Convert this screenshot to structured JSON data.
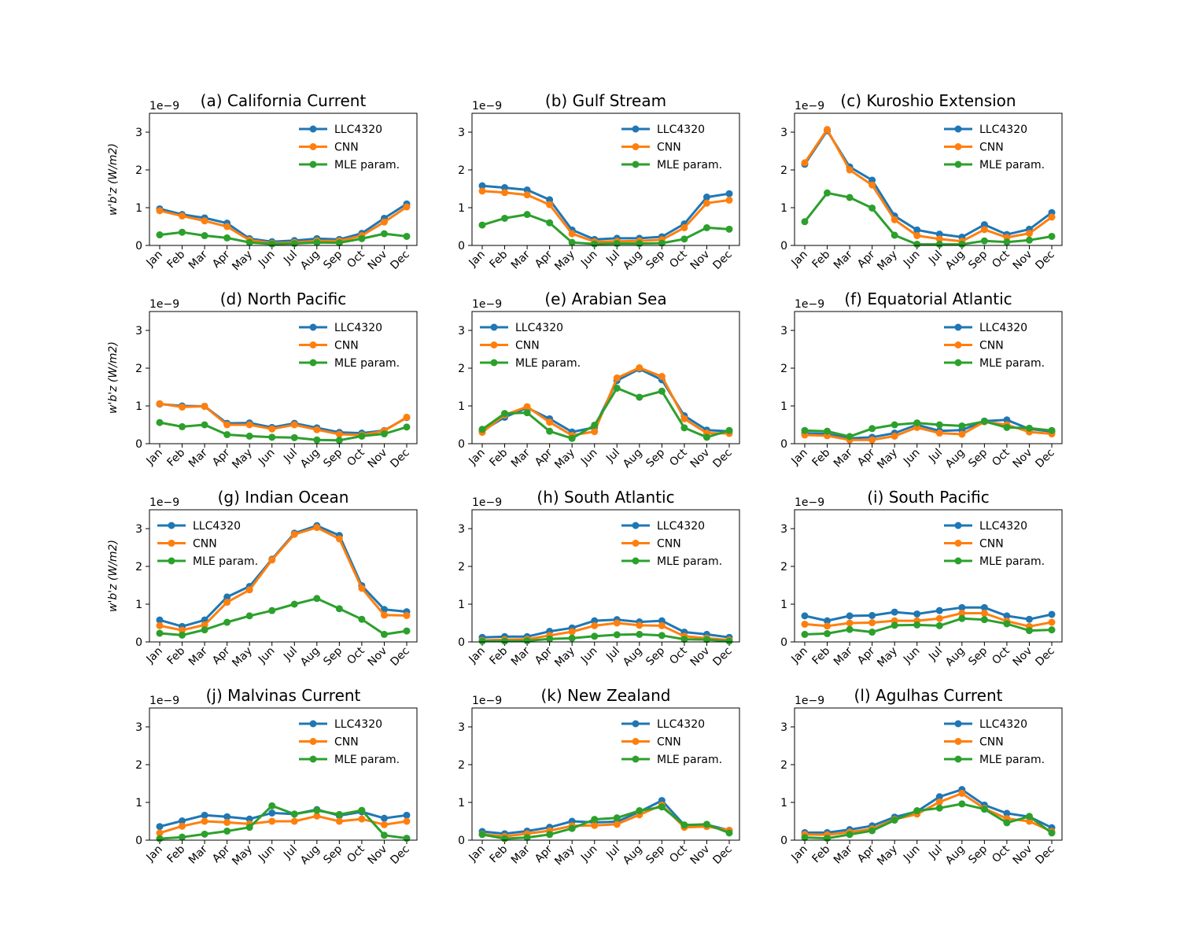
{
  "chart_data": {
    "type": "line",
    "months": [
      "Jan",
      "Feb",
      "Mar",
      "Apr",
      "May",
      "Jun",
      "Jul",
      "Aug",
      "Sep",
      "Oct",
      "Nov",
      "Dec"
    ],
    "ylim": [
      0,
      3.5
    ],
    "yticks": [
      "0",
      "1",
      "2",
      "3"
    ],
    "y_exponent_label": "1e−9",
    "ylabel": "w'b'z (W/m2)",
    "series_names": [
      "LLC4320",
      "CNN",
      "MLE param."
    ],
    "colors": {
      "llc": "#1f77b4",
      "cnn": "#ff7f0e",
      "mle": "#2ca02c"
    },
    "panels": [
      {
        "title": "(a) California Current",
        "legend_pos": "top-right",
        "show_ylabel": true,
        "series": [
          {
            "name": "LLC4320",
            "values": [
              0.97,
              0.82,
              0.73,
              0.59,
              0.18,
              0.1,
              0.13,
              0.18,
              0.16,
              0.32,
              0.72,
              1.1
            ]
          },
          {
            "name": "CNN",
            "values": [
              0.92,
              0.78,
              0.65,
              0.5,
              0.14,
              0.06,
              0.08,
              0.12,
              0.12,
              0.26,
              0.62,
              1.02
            ]
          },
          {
            "name": "MLE param.",
            "values": [
              0.28,
              0.35,
              0.26,
              0.2,
              0.08,
              0.04,
              0.05,
              0.08,
              0.07,
              0.18,
              0.31,
              0.24
            ]
          }
        ]
      },
      {
        "title": "(b) Gulf Stream",
        "legend_pos": "top-right",
        "show_ylabel": false,
        "series": [
          {
            "name": "LLC4320",
            "values": [
              1.58,
              1.53,
              1.47,
              1.21,
              0.41,
              0.16,
              0.19,
              0.19,
              0.23,
              0.57,
              1.28,
              1.37
            ]
          },
          {
            "name": "CNN",
            "values": [
              1.44,
              1.4,
              1.34,
              1.08,
              0.31,
              0.1,
              0.11,
              0.12,
              0.15,
              0.47,
              1.12,
              1.2
            ]
          },
          {
            "name": "MLE param.",
            "values": [
              0.54,
              0.72,
              0.82,
              0.6,
              0.08,
              0.04,
              0.05,
              0.05,
              0.06,
              0.17,
              0.47,
              0.43
            ]
          }
        ]
      },
      {
        "title": "(c) Kuroshio Extension",
        "legend_pos": "top-right",
        "show_ylabel": false,
        "series": [
          {
            "name": "LLC4320",
            "values": [
              2.15,
              3.04,
              2.08,
              1.73,
              0.78,
              0.41,
              0.3,
              0.22,
              0.55,
              0.29,
              0.43,
              0.87
            ]
          },
          {
            "name": "CNN",
            "values": [
              2.19,
              3.07,
              2.0,
              1.6,
              0.68,
              0.26,
              0.17,
              0.11,
              0.42,
              0.21,
              0.32,
              0.75
            ]
          },
          {
            "name": "MLE param.",
            "values": [
              0.63,
              1.39,
              1.27,
              0.99,
              0.27,
              0.03,
              0.03,
              0.03,
              0.12,
              0.09,
              0.14,
              0.24
            ]
          }
        ]
      },
      {
        "title": "(d) North Pacific",
        "legend_pos": "top-right",
        "show_ylabel": true,
        "series": [
          {
            "name": "LLC4320",
            "values": [
              1.05,
              1.0,
              0.99,
              0.54,
              0.55,
              0.43,
              0.54,
              0.42,
              0.3,
              0.28,
              0.35,
              0.69
            ]
          },
          {
            "name": "CNN",
            "values": [
              1.06,
              0.97,
              0.99,
              0.5,
              0.5,
              0.39,
              0.5,
              0.37,
              0.25,
              0.23,
              0.34,
              0.7
            ]
          },
          {
            "name": "MLE param.",
            "values": [
              0.56,
              0.45,
              0.5,
              0.24,
              0.2,
              0.17,
              0.16,
              0.1,
              0.09,
              0.2,
              0.26,
              0.44
            ]
          }
        ]
      },
      {
        "title": "(e) Arabian Sea",
        "legend_pos": "top-left",
        "show_ylabel": false,
        "series": [
          {
            "name": "LLC4320",
            "values": [
              0.34,
              0.7,
              0.95,
              0.66,
              0.31,
              0.43,
              1.67,
              1.98,
              1.69,
              0.74,
              0.36,
              0.33
            ]
          },
          {
            "name": "CNN",
            "values": [
              0.3,
              0.76,
              0.98,
              0.57,
              0.22,
              0.32,
              1.74,
              2.01,
              1.78,
              0.66,
              0.28,
              0.27
            ]
          },
          {
            "name": "MLE param.",
            "values": [
              0.38,
              0.8,
              0.82,
              0.33,
              0.14,
              0.49,
              1.47,
              1.23,
              1.39,
              0.42,
              0.17,
              0.35
            ]
          }
        ]
      },
      {
        "title": "(f) Equatorial Atlantic",
        "legend_pos": "top-right",
        "show_ylabel": false,
        "series": [
          {
            "name": "LLC4320",
            "values": [
              0.28,
              0.26,
              0.14,
              0.17,
              0.28,
              0.5,
              0.34,
              0.36,
              0.6,
              0.63,
              0.39,
              0.32
            ]
          },
          {
            "name": "CNN",
            "values": [
              0.23,
              0.21,
              0.1,
              0.1,
              0.2,
              0.43,
              0.28,
              0.25,
              0.58,
              0.5,
              0.31,
              0.26
            ]
          },
          {
            "name": "MLE param.",
            "values": [
              0.35,
              0.33,
              0.19,
              0.4,
              0.5,
              0.55,
              0.5,
              0.47,
              0.59,
              0.43,
              0.41,
              0.35
            ]
          }
        ]
      },
      {
        "title": "(g) Indian Ocean",
        "legend_pos": "top-left",
        "show_ylabel": true,
        "series": [
          {
            "name": "LLC4320",
            "values": [
              0.58,
              0.41,
              0.58,
              1.19,
              1.47,
              2.19,
              2.88,
              3.08,
              2.82,
              1.49,
              0.86,
              0.8
            ]
          },
          {
            "name": "CNN",
            "values": [
              0.43,
              0.31,
              0.45,
              1.05,
              1.38,
              2.17,
              2.85,
              3.03,
              2.73,
              1.42,
              0.71,
              0.7
            ]
          },
          {
            "name": "MLE param.",
            "values": [
              0.23,
              0.18,
              0.32,
              0.52,
              0.69,
              0.83,
              1.0,
              1.15,
              0.88,
              0.6,
              0.2,
              0.29
            ]
          }
        ]
      },
      {
        "title": "(h) South Atlantic",
        "legend_pos": "top-right",
        "show_ylabel": false,
        "series": [
          {
            "name": "LLC4320",
            "values": [
              0.12,
              0.14,
              0.14,
              0.28,
              0.37,
              0.56,
              0.59,
              0.53,
              0.56,
              0.26,
              0.2,
              0.12
            ]
          },
          {
            "name": "CNN",
            "values": [
              0.04,
              0.06,
              0.07,
              0.17,
              0.27,
              0.43,
              0.5,
              0.44,
              0.43,
              0.15,
              0.1,
              0.05
            ]
          },
          {
            "name": "MLE param.",
            "values": [
              0.02,
              0.02,
              0.03,
              0.08,
              0.1,
              0.15,
              0.19,
              0.2,
              0.17,
              0.07,
              0.06,
              0.02
            ]
          }
        ]
      },
      {
        "title": "(i) South Pacific",
        "legend_pos": "top-right",
        "show_ylabel": false,
        "series": [
          {
            "name": "LLC4320",
            "values": [
              0.69,
              0.56,
              0.69,
              0.7,
              0.79,
              0.74,
              0.83,
              0.91,
              0.91,
              0.69,
              0.6,
              0.73
            ]
          },
          {
            "name": "CNN",
            "values": [
              0.47,
              0.42,
              0.5,
              0.51,
              0.56,
              0.56,
              0.62,
              0.76,
              0.76,
              0.55,
              0.41,
              0.52
            ]
          },
          {
            "name": "MLE param.",
            "values": [
              0.2,
              0.22,
              0.33,
              0.26,
              0.44,
              0.45,
              0.43,
              0.62,
              0.59,
              0.48,
              0.3,
              0.32
            ]
          }
        ]
      },
      {
        "title": "(j) Malvinas Current",
        "legend_pos": "top-right",
        "show_ylabel": false,
        "series": [
          {
            "name": "LLC4320",
            "values": [
              0.36,
              0.51,
              0.66,
              0.62,
              0.56,
              0.72,
              0.69,
              0.81,
              0.65,
              0.75,
              0.58,
              0.66
            ]
          },
          {
            "name": "CNN",
            "values": [
              0.19,
              0.37,
              0.5,
              0.47,
              0.43,
              0.5,
              0.5,
              0.64,
              0.5,
              0.56,
              0.41,
              0.5
            ]
          },
          {
            "name": "MLE param.",
            "values": [
              0.04,
              0.08,
              0.16,
              0.24,
              0.34,
              0.91,
              0.69,
              0.79,
              0.68,
              0.79,
              0.13,
              0.05
            ]
          }
        ]
      },
      {
        "title": "(k) New Zealand",
        "legend_pos": "top-right",
        "show_ylabel": false,
        "series": [
          {
            "name": "LLC4320",
            "values": [
              0.23,
              0.17,
              0.24,
              0.34,
              0.5,
              0.47,
              0.49,
              0.75,
              1.05,
              0.4,
              0.41,
              0.26
            ]
          },
          {
            "name": "CNN",
            "values": [
              0.16,
              0.1,
              0.17,
              0.25,
              0.38,
              0.39,
              0.42,
              0.67,
              0.93,
              0.34,
              0.36,
              0.26
            ]
          },
          {
            "name": "MLE param.",
            "values": [
              0.15,
              0.04,
              0.07,
              0.15,
              0.31,
              0.55,
              0.59,
              0.78,
              0.88,
              0.4,
              0.42,
              0.19
            ]
          }
        ]
      },
      {
        "title": "(l) Agulhas Current",
        "legend_pos": "top-right",
        "show_ylabel": false,
        "series": [
          {
            "name": "LLC4320",
            "values": [
              0.2,
              0.2,
              0.28,
              0.38,
              0.61,
              0.76,
              1.15,
              1.34,
              0.93,
              0.71,
              0.62,
              0.33
            ]
          },
          {
            "name": "CNN",
            "values": [
              0.15,
              0.14,
              0.21,
              0.3,
              0.55,
              0.69,
              1.01,
              1.24,
              0.84,
              0.57,
              0.5,
              0.23
            ]
          },
          {
            "name": "MLE param.",
            "values": [
              0.07,
              0.05,
              0.15,
              0.25,
              0.53,
              0.78,
              0.85,
              0.96,
              0.82,
              0.46,
              0.63,
              0.19
            ]
          }
        ]
      }
    ]
  }
}
